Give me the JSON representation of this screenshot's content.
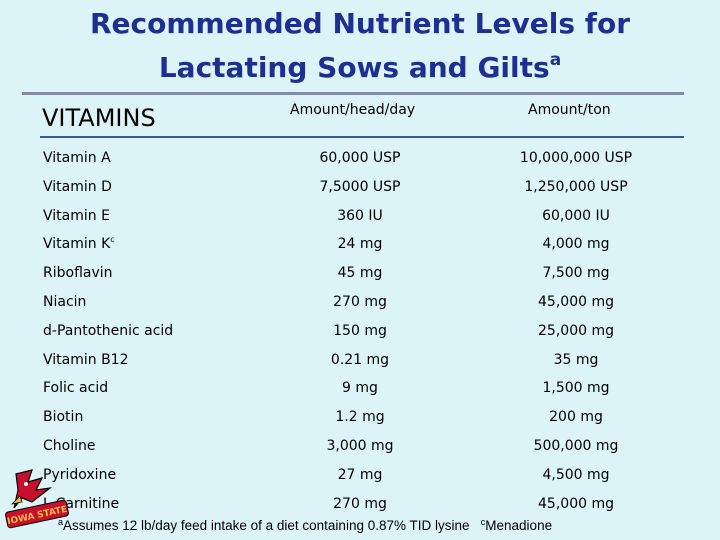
{
  "title": {
    "line1": "Recommended Nutrient Levels for",
    "line2": "Lactating Sows and Gilts",
    "sup": "a"
  },
  "header": {
    "col1": "VITAMINS",
    "col2": "Amount/head/day",
    "col3": "Amount/ton"
  },
  "rows": [
    {
      "name": "Vitamin A",
      "sup": "",
      "head": "60,000 USP",
      "ton": "10,000,000 USP"
    },
    {
      "name": "Vitamin D",
      "sup": "",
      "head": "7,5000 USP",
      "ton": "1,250,000 USP"
    },
    {
      "name": "Vitamin E",
      "sup": "",
      "head": "360 IU",
      "ton": "60,000 IU"
    },
    {
      "name": "Vitamin K",
      "sup": "c",
      "head": "24 mg",
      "ton": "4,000 mg"
    },
    {
      "name": "Riboflavin",
      "sup": "",
      "head": "45 mg",
      "ton": "7,500 mg"
    },
    {
      "name": "Niacin",
      "sup": "",
      "head": "270 mg",
      "ton": "45,000 mg"
    },
    {
      "name": "d-Pantothenic acid",
      "sup": "",
      "head": "150 mg",
      "ton": "25,000 mg"
    },
    {
      "name": "Vitamin B12",
      "sup": "",
      "head": "0.21 mg",
      "ton": "35 mg"
    },
    {
      "name": "Folic acid",
      "sup": "",
      "head": "9 mg",
      "ton": "1,500 mg"
    },
    {
      "name": "Biotin",
      "sup": "",
      "head": "1.2 mg",
      "ton": "200 mg"
    },
    {
      "name": "Choline",
      "sup": "",
      "head": "3,000 mg",
      "ton": "500,000 mg"
    },
    {
      "name": "Pyridoxine",
      "sup": "",
      "head": "27 mg",
      "ton": "4,500 mg"
    },
    {
      "name": "L-Carnitine",
      "sup": "",
      "head": "270 mg",
      "ton": "45,000 mg"
    }
  ],
  "footnote": {
    "a_mark": "a",
    "a_text": "Assumes 12 lb/day feed intake of a diet containing 0.87% TID lysine",
    "c_mark": "c",
    "c_text": "Menadione"
  },
  "logo": {
    "text": "IOWA STATE",
    "icon": "cyclone-mascot-icon"
  },
  "colors": {
    "background": "#dcf3f8",
    "title": "#1f2f8f",
    "rule": "#3a55a0"
  }
}
